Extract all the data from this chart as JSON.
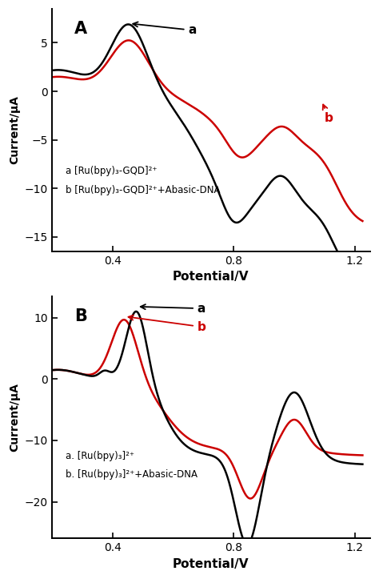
{
  "panel_A": {
    "label": "A",
    "xlabel": "Potential/V",
    "ylabel": "Current/μA",
    "xlim": [
      0.2,
      1.25
    ],
    "ylim": [
      -16.5,
      8.5
    ],
    "yticks": [
      -15,
      -10,
      -5,
      0,
      5
    ],
    "xticks": [
      0.4,
      0.8,
      1.2
    ],
    "ann_a_text": "a",
    "ann_b_text": "b",
    "legend_line1": "a [Ru(bpy)₃-GQD]²⁺",
    "legend_line2": "b [Ru(bpy)₃-GQD]²⁺+Abasic-DNA"
  },
  "panel_B": {
    "label": "B",
    "xlabel": "Potential/V",
    "ylabel": "Current/μA",
    "xlim": [
      0.2,
      1.25
    ],
    "ylim": [
      -26,
      13.5
    ],
    "yticks": [
      -20,
      -10,
      0,
      10
    ],
    "xticks": [
      0.4,
      0.8,
      1.2
    ],
    "ann_a_text": "a",
    "ann_b_text": "b",
    "legend_line1": "a. [Ru(bpy)₃]²⁺",
    "legend_line2": "b. [Ru(bpy)₃]²⁺+Abasic-DNA"
  },
  "color_a": "#000000",
  "color_b": "#cc0000",
  "linewidth": 1.8,
  "background": "#ffffff"
}
